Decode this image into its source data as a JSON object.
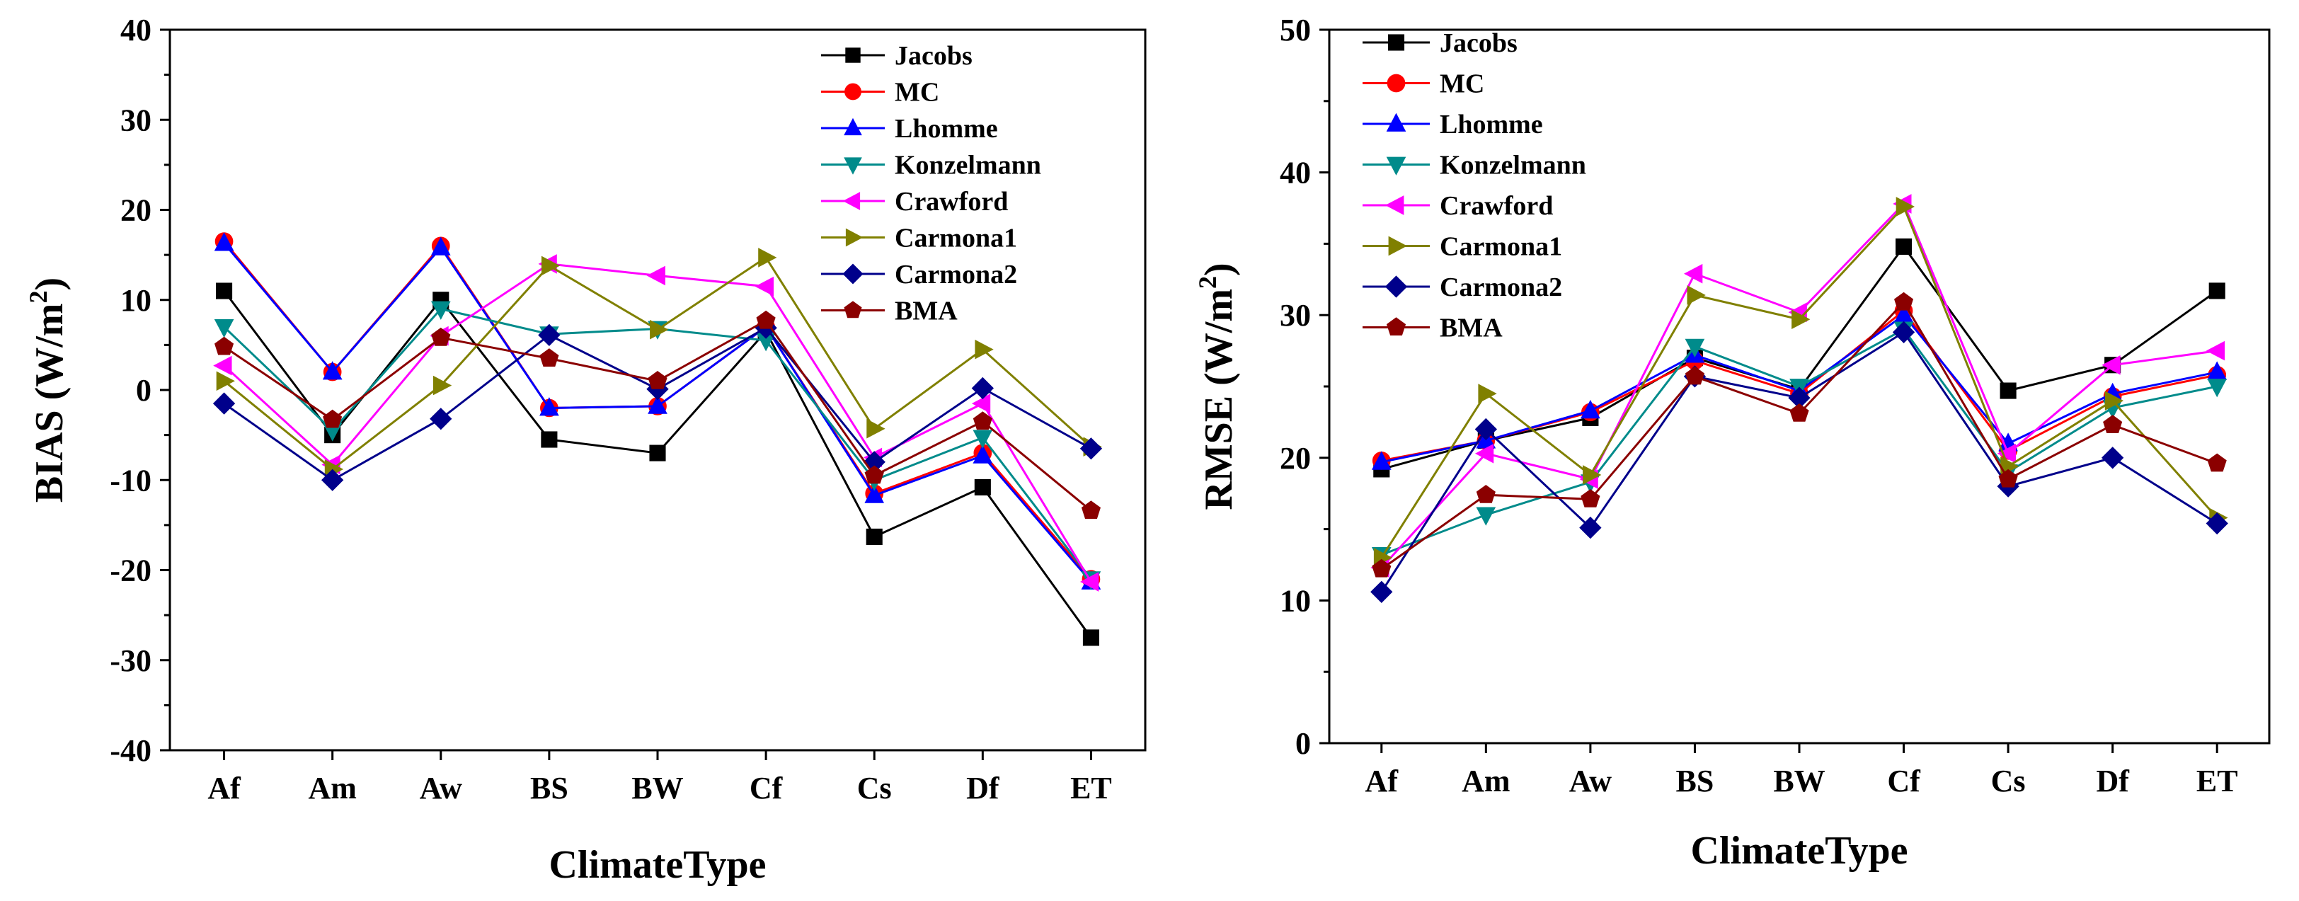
{
  "chart_data": [
    {
      "type": "line",
      "xlabel": "ClimateType",
      "ylabel_main": "BIAS (W/m",
      "ylabel_sup": "2",
      "ylabel_close": ")",
      "categories": [
        "Af",
        "Am",
        "Aw",
        "BS",
        "BW",
        "Cf",
        "Cs",
        "Df",
        "ET"
      ],
      "ylim": [
        -40,
        40
      ],
      "yticks": [
        -40,
        -30,
        -20,
        -10,
        0,
        10,
        20,
        30,
        40
      ],
      "ytick_labels": [
        "-40",
        "-30",
        "-20",
        "-10",
        "0",
        "10",
        "20",
        "30",
        "40"
      ],
      "legend_position": "top-right",
      "series": [
        {
          "name": "Jacobs",
          "color": "#000000",
          "marker": "square",
          "values": [
            11,
            -5,
            10,
            -5.5,
            -7,
            6.5,
            -16.3,
            -10.8,
            -27.5
          ]
        },
        {
          "name": "MC",
          "color": "#ff0000",
          "marker": "circle",
          "values": [
            16.5,
            2,
            16,
            -2,
            -1.8,
            7,
            -11.5,
            -7,
            -21
          ]
        },
        {
          "name": "Lhomme",
          "color": "#0000ff",
          "marker": "triangle-up",
          "values": [
            16.3,
            2,
            15.8,
            -2,
            -1.8,
            7,
            -11.7,
            -7.3,
            -21.3
          ]
        },
        {
          "name": "Konzelmann",
          "color": "#008b8b",
          "marker": "triangle-down",
          "values": [
            7,
            -4.5,
            9,
            6.2,
            6.8,
            5.5,
            -10,
            -5.3,
            -21
          ]
        },
        {
          "name": "Crawford",
          "color": "#ff00ff",
          "marker": "triangle-left",
          "values": [
            2.7,
            -8.3,
            6,
            14,
            12.7,
            11.5,
            -7.5,
            -1.5,
            -21.3
          ]
        },
        {
          "name": "Carmona1",
          "color": "#808000",
          "marker": "triangle-right",
          "values": [
            1,
            -8.8,
            0.5,
            13.8,
            6.7,
            14.7,
            -4.3,
            4.5,
            -6.3
          ]
        },
        {
          "name": "Carmona2",
          "color": "#00008b",
          "marker": "diamond",
          "values": [
            -1.5,
            -10,
            -3.2,
            6.1,
            0.1,
            6.9,
            -8,
            0.2,
            -6.5
          ]
        },
        {
          "name": "BMA",
          "color": "#8b0000",
          "marker": "pentagon",
          "values": [
            4.8,
            -3.3,
            5.8,
            3.5,
            1,
            7.7,
            -9.5,
            -3.5,
            -13.4
          ]
        }
      ]
    },
    {
      "type": "line",
      "xlabel": "ClimateType",
      "ylabel_main": "RMSE (W/m",
      "ylabel_sup": "2",
      "ylabel_close": ")",
      "categories": [
        "Af",
        "Am",
        "Aw",
        "BS",
        "BW",
        "Cf",
        "Cs",
        "Df",
        "ET"
      ],
      "ylim": [
        0,
        50
      ],
      "yticks": [
        0,
        10,
        20,
        30,
        40,
        50
      ],
      "ytick_labels": [
        "0",
        "10",
        "20",
        "30",
        "40",
        "50"
      ],
      "legend_position": "top-left",
      "series": [
        {
          "name": "Jacobs",
          "color": "#000000",
          "marker": "square",
          "values": [
            19.2,
            21.2,
            22.8,
            27,
            24.8,
            34.8,
            24.7,
            26.5,
            31.7
          ]
        },
        {
          "name": "MC",
          "color": "#ff0000",
          "marker": "circle",
          "values": [
            19.8,
            21.2,
            23.2,
            26.8,
            24.5,
            30.3,
            20.5,
            24.3,
            25.8
          ]
        },
        {
          "name": "Lhomme",
          "color": "#0000ff",
          "marker": "triangle-up",
          "values": [
            19.7,
            21.2,
            23.3,
            27.2,
            24.7,
            30,
            21,
            24.5,
            26
          ]
        },
        {
          "name": "Konzelmann",
          "color": "#008b8b",
          "marker": "triangle-down",
          "values": [
            13.2,
            16,
            18.3,
            27.8,
            25,
            29,
            19,
            23.5,
            25
          ]
        },
        {
          "name": "Crawford",
          "color": "#ff00ff",
          "marker": "triangle-left",
          "values": [
            12.3,
            20.3,
            18.5,
            32.9,
            30.2,
            37.8,
            20.3,
            26.5,
            27.5
          ]
        },
        {
          "name": "Carmona1",
          "color": "#808000",
          "marker": "triangle-right",
          "values": [
            13,
            24.5,
            18.8,
            31.4,
            29.7,
            37.6,
            19.4,
            24,
            15.8
          ]
        },
        {
          "name": "Carmona2",
          "color": "#00008b",
          "marker": "diamond",
          "values": [
            10.6,
            22,
            15.1,
            25.7,
            24.2,
            28.8,
            18,
            20,
            15.4
          ]
        },
        {
          "name": "BMA",
          "color": "#8b0000",
          "marker": "pentagon",
          "values": [
            12.2,
            17.4,
            17.1,
            25.7,
            23.1,
            30.9,
            18.5,
            22.3,
            19.6
          ]
        }
      ]
    }
  ]
}
